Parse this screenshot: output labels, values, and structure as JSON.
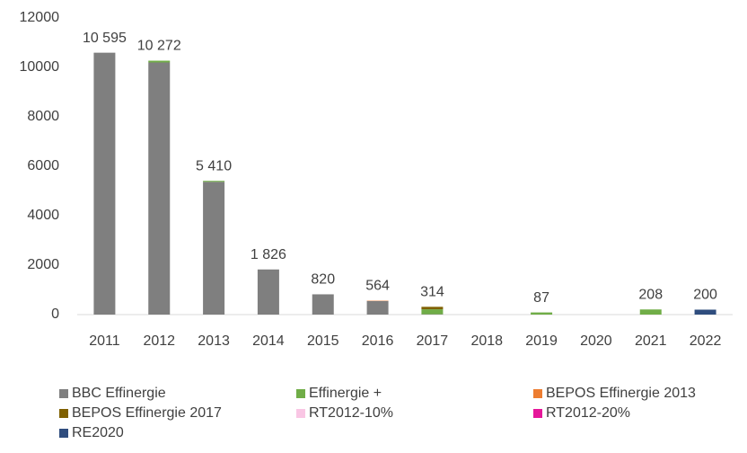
{
  "chart_data": {
    "type": "stacked_bar",
    "categories": [
      "2011",
      "2012",
      "2013",
      "2014",
      "2015",
      "2016",
      "2017",
      "2018",
      "2019",
      "2020",
      "2021",
      "2022"
    ],
    "series": [
      {
        "name": "BBC Effinergie",
        "color": "#7f7f7f",
        "values": [
          10595,
          10200,
          5370,
          1826,
          820,
          550,
          14,
          0,
          0,
          0,
          0,
          0
        ]
      },
      {
        "name": "Effinergie +",
        "color": "#70ad47",
        "values": [
          0,
          72,
          40,
          0,
          0,
          0,
          200,
          0,
          87,
          0,
          208,
          0
        ]
      },
      {
        "name": "BEPOS Effinergie 2013",
        "color": "#ed7d31",
        "values": [
          0,
          0,
          0,
          0,
          0,
          14,
          0,
          0,
          0,
          0,
          0,
          0
        ]
      },
      {
        "name": "BEPOS Effinergie 2017",
        "color": "#7f6000",
        "values": [
          0,
          0,
          0,
          0,
          0,
          0,
          100,
          0,
          0,
          0,
          0,
          0
        ]
      },
      {
        "name": "RT2012-10%",
        "color": "#f9c6e4",
        "values": [
          0,
          0,
          0,
          0,
          0,
          0,
          0,
          0,
          0,
          0,
          0,
          0
        ]
      },
      {
        "name": "RT2012-20%",
        "color": "#e6179a",
        "values": [
          0,
          0,
          0,
          0,
          0,
          0,
          0,
          0,
          0,
          0,
          0,
          0
        ]
      },
      {
        "name": "RE2020",
        "color": "#2f4d7e",
        "values": [
          0,
          0,
          0,
          0,
          0,
          0,
          0,
          0,
          0,
          0,
          0,
          200
        ]
      }
    ],
    "totals": [
      10595,
      10272,
      5410,
      1826,
      820,
      564,
      314,
      null,
      87,
      null,
      208,
      200
    ],
    "total_labels": [
      "10 595",
      "10 272",
      "5 410",
      "1 826",
      "820",
      "564",
      "314",
      null,
      "87",
      null,
      "208",
      "200"
    ],
    "ylim": [
      0,
      12000
    ],
    "yticks": [
      0,
      2000,
      4000,
      6000,
      8000,
      10000,
      12000
    ],
    "grid": false
  }
}
